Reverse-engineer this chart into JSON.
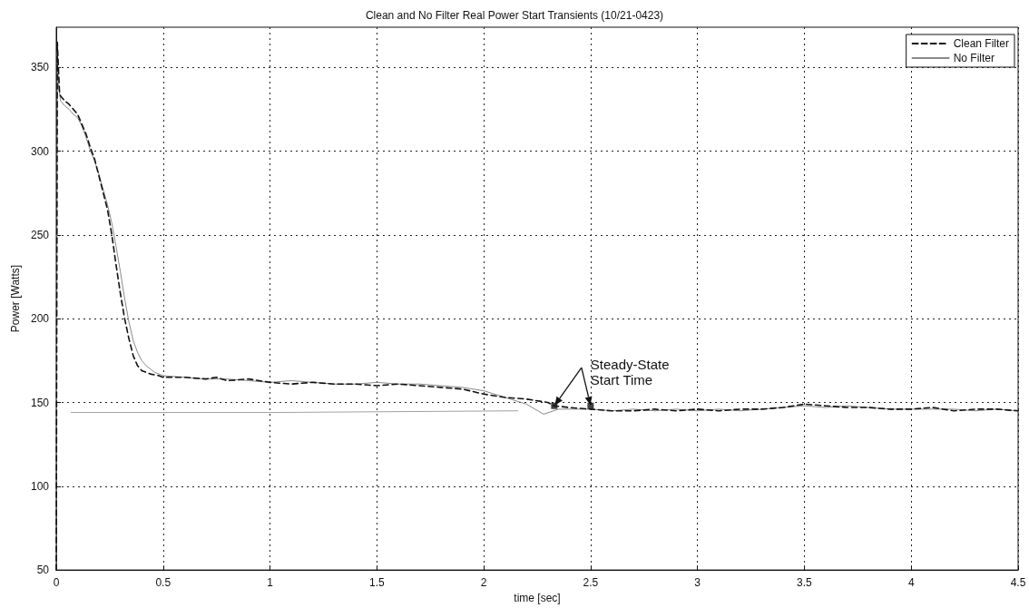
{
  "chart_data": {
    "type": "line",
    "title": "Clean and No Filter Real Power Start Transients (10/21-0423)",
    "xlabel": "time [sec]",
    "ylabel": "Power [Watts]",
    "xlim": [
      0,
      4.5
    ],
    "xticks": [
      0,
      0.5,
      1,
      1.5,
      2,
      2.5,
      3,
      3.5,
      4,
      4.5
    ],
    "ylim": [
      50,
      374
    ],
    "yticks": [
      50,
      100,
      150,
      200,
      250,
      300,
      350
    ],
    "grid": true,
    "legend": "top right",
    "marker": "none",
    "annotations": [
      {
        "text": "Steady-State\nStart Time",
        "x": 2.33,
        "y": 148
      }
    ],
    "series": [
      {
        "name": "Clean Filter",
        "color": "#111111",
        "line_style": "dashed",
        "x": [
          0,
          0.005,
          0.01,
          0.015,
          0.02,
          0.04,
          0.06,
          0.08,
          0.1,
          0.12,
          0.14,
          0.16,
          0.18,
          0.2,
          0.22,
          0.24,
          0.26,
          0.28,
          0.3,
          0.32,
          0.34,
          0.36,
          0.38,
          0.4,
          0.44,
          0.48,
          0.5,
          0.6,
          0.7,
          0.75,
          0.8,
          0.9,
          1.0,
          1.1,
          1.2,
          1.3,
          1.4,
          1.5,
          1.6,
          1.7,
          1.8,
          1.9,
          2.0,
          2.1,
          2.2,
          2.3,
          2.33,
          2.4,
          2.5,
          2.6,
          2.7,
          2.8,
          2.9,
          3.0,
          3.1,
          3.2,
          3.3,
          3.4,
          3.5,
          3.6,
          3.7,
          3.8,
          3.9,
          4.0,
          4.1,
          4.2,
          4.3,
          4.4,
          4.5
        ],
        "values": [
          50,
          365,
          350,
          336,
          333,
          330,
          328,
          325,
          322,
          316,
          310,
          302,
          295,
          285,
          275,
          265,
          250,
          232,
          215,
          200,
          188,
          178,
          172,
          169,
          167,
          166,
          165,
          165,
          164,
          165,
          163,
          164,
          162,
          161,
          162,
          161,
          161,
          160,
          161,
          160,
          159,
          158,
          155,
          153,
          152,
          150,
          148,
          147,
          146,
          145,
          145,
          146,
          145,
          146,
          145,
          146,
          146,
          147,
          149,
          148,
          147,
          147,
          146,
          146,
          147,
          145,
          146,
          146,
          145
        ]
      },
      {
        "name": "No Filter",
        "color": "#8a8a8a",
        "line_style": "solid",
        "x": [
          0,
          0.005,
          0.01,
          0.02,
          0.04,
          0.06,
          0.08,
          0.1,
          0.12,
          0.14,
          0.16,
          0.18,
          0.2,
          0.22,
          0.24,
          0.26,
          0.28,
          0.3,
          0.32,
          0.34,
          0.36,
          0.38,
          0.4,
          0.42,
          0.46,
          0.5,
          0.6,
          0.7,
          0.8,
          0.9,
          1.0,
          1.1,
          1.2,
          1.3,
          1.4,
          1.5,
          1.6,
          1.7,
          1.8,
          1.9,
          2.0,
          2.1,
          2.2,
          2.28,
          2.35,
          2.4,
          2.5,
          2.6,
          2.7,
          2.8,
          2.9,
          3.0,
          3.1,
          3.2,
          3.3,
          3.4,
          3.5,
          3.6,
          3.7,
          3.8,
          3.9,
          4.0,
          4.1,
          4.2,
          4.3,
          4.4,
          4.5
        ],
        "values": [
          50,
          360,
          340,
          330,
          327,
          325,
          322,
          320,
          315,
          308,
          300,
          294,
          286,
          277,
          268,
          257,
          243,
          228,
          212,
          198,
          187,
          180,
          175,
          172,
          168,
          166,
          165,
          164,
          164,
          163,
          162,
          163,
          162,
          161,
          161,
          162,
          161,
          161,
          160,
          159,
          157,
          153,
          149,
          143,
          146,
          146,
          146,
          145,
          146,
          145,
          146,
          145,
          146,
          145,
          146,
          147,
          148,
          147,
          148,
          147,
          146,
          146,
          146,
          146,
          145,
          146,
          145
        ]
      },
      {
        "color": "#a0a0a0",
        "line_style": "solid",
        "x": [
          0.07,
          1.0,
          2.16
        ],
        "values": [
          144,
          144,
          145
        ]
      },
      {
        "type": "scatter",
        "color": "#111111",
        "marker": "square",
        "x": [
          2.33,
          2.5
        ],
        "values": [
          148,
          148
        ]
      }
    ]
  }
}
